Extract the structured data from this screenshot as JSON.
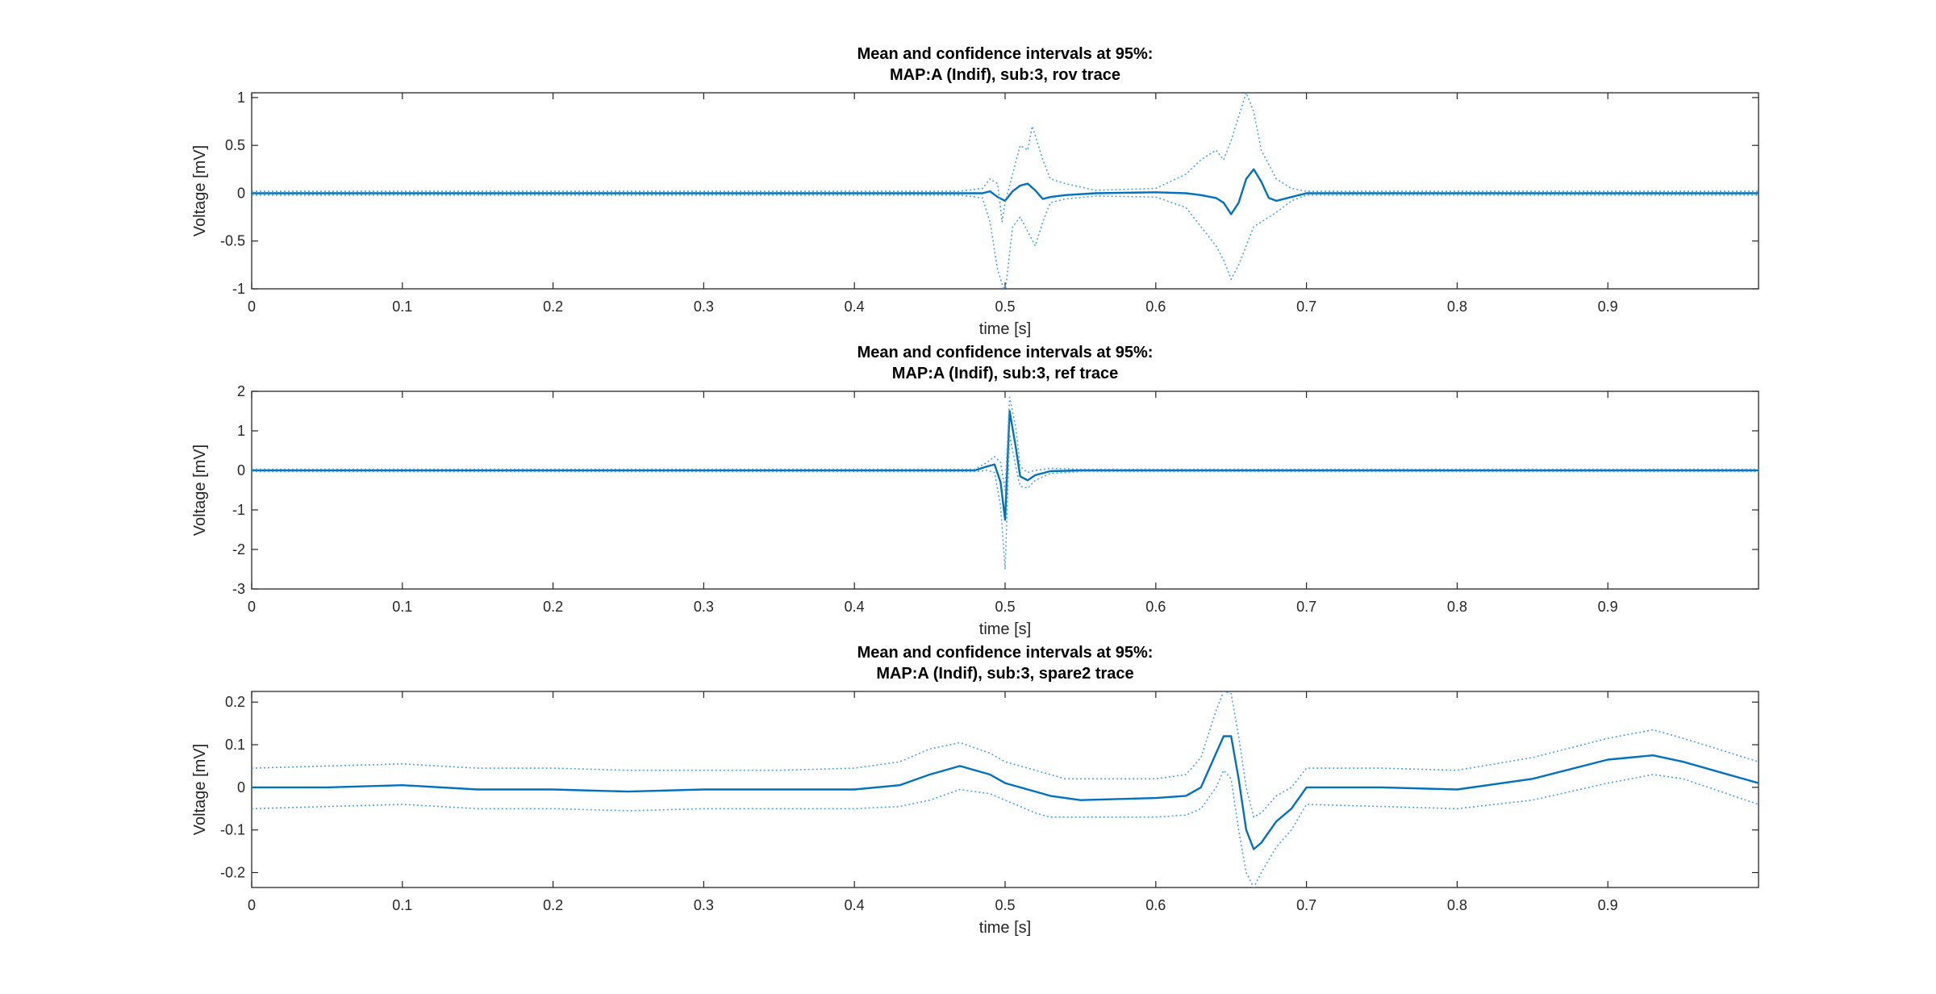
{
  "colors": {
    "mean": "#0072BD",
    "ci": "#4DA3E0",
    "axis": "#262626"
  },
  "chart_data": [
    {
      "type": "line",
      "title": [
        "Mean and confidence intervals at 95%:",
        "MAP:A (Indif), sub:3, rov trace"
      ],
      "xlabel": "time [s]",
      "ylabel": "Voltage [mV]",
      "xlim": [
        0,
        1
      ],
      "ylim": [
        -1,
        1.05
      ],
      "xticks": [
        0,
        0.1,
        0.2,
        0.3,
        0.4,
        0.5,
        0.6,
        0.7,
        0.8,
        0.9
      ],
      "yticks": [
        -1,
        -0.5,
        0,
        0.5,
        1
      ],
      "xtick_labels": [
        "0",
        "0.1",
        "0.2",
        "0.3",
        "0.4",
        "0.5",
        "0.6",
        "0.7",
        "0.8",
        "0.9"
      ],
      "ytick_labels": [
        "-1",
        "-0.5",
        "0",
        "0.5",
        "1"
      ],
      "series": [
        {
          "style": "mean",
          "x": [
            0,
            0.47,
            0.485,
            0.49,
            0.495,
            0.5,
            0.505,
            0.51,
            0.515,
            0.52,
            0.525,
            0.53,
            0.54,
            0.56,
            0.6,
            0.62,
            0.63,
            0.64,
            0.645,
            0.65,
            0.655,
            0.66,
            0.665,
            0.67,
            0.675,
            0.68,
            0.69,
            0.7,
            1.0
          ],
          "y": [
            0,
            0,
            0,
            0.02,
            -0.04,
            -0.08,
            0.02,
            0.08,
            0.1,
            0.03,
            -0.06,
            -0.04,
            -0.02,
            0,
            0.01,
            0.0,
            -0.02,
            -0.05,
            -0.1,
            -0.22,
            -0.1,
            0.15,
            0.25,
            0.12,
            -0.05,
            -0.08,
            -0.04,
            0,
            0
          ]
        },
        {
          "style": "ci",
          "x": [
            0,
            0.47,
            0.485,
            0.49,
            0.495,
            0.498,
            0.5,
            0.505,
            0.51,
            0.515,
            0.518,
            0.52,
            0.525,
            0.53,
            0.54,
            0.56,
            0.6,
            0.62,
            0.63,
            0.64,
            0.645,
            0.65,
            0.655,
            0.66,
            0.665,
            0.67,
            0.675,
            0.68,
            0.69,
            0.7,
            1.0
          ],
          "y": [
            0.02,
            0.02,
            0.05,
            0.15,
            0.1,
            -0.3,
            -0.1,
            0.2,
            0.5,
            0.45,
            0.7,
            0.6,
            0.35,
            0.15,
            0.1,
            0.03,
            0.05,
            0.2,
            0.35,
            0.45,
            0.35,
            0.55,
            0.8,
            1.05,
            0.85,
            0.45,
            0.3,
            0.15,
            0.05,
            0.02,
            0.02
          ]
        },
        {
          "style": "ci",
          "x": [
            0,
            0.47,
            0.485,
            0.49,
            0.495,
            0.5,
            0.505,
            0.51,
            0.515,
            0.52,
            0.525,
            0.53,
            0.54,
            0.56,
            0.6,
            0.62,
            0.63,
            0.64,
            0.645,
            0.65,
            0.655,
            0.66,
            0.665,
            0.67,
            0.675,
            0.68,
            0.69,
            0.7,
            1.0
          ],
          "y": [
            -0.02,
            -0.02,
            -0.05,
            -0.3,
            -0.8,
            -1.05,
            -0.35,
            -0.25,
            -0.4,
            -0.55,
            -0.3,
            -0.1,
            -0.06,
            -0.03,
            -0.04,
            -0.15,
            -0.35,
            -0.55,
            -0.7,
            -0.9,
            -0.75,
            -0.55,
            -0.35,
            -0.3,
            -0.25,
            -0.2,
            -0.08,
            -0.02,
            -0.02
          ]
        }
      ]
    },
    {
      "type": "line",
      "title": [
        "Mean and confidence intervals at 95%:",
        "MAP:A (Indif), sub:3, ref trace"
      ],
      "xlabel": "time [s]",
      "ylabel": "Voltage [mV]",
      "xlim": [
        0,
        1
      ],
      "ylim": [
        -3,
        2
      ],
      "xticks": [
        0,
        0.1,
        0.2,
        0.3,
        0.4,
        0.5,
        0.6,
        0.7,
        0.8,
        0.9
      ],
      "yticks": [
        -3,
        -2,
        -1,
        0,
        1,
        2
      ],
      "xtick_labels": [
        "0",
        "0.1",
        "0.2",
        "0.3",
        "0.4",
        "0.5",
        "0.6",
        "0.7",
        "0.8",
        "0.9"
      ],
      "ytick_labels": [
        "-3",
        "-2",
        "-1",
        "0",
        "1",
        "2"
      ],
      "series": [
        {
          "style": "mean",
          "x": [
            0,
            0.48,
            0.488,
            0.493,
            0.497,
            0.5,
            0.503,
            0.507,
            0.51,
            0.515,
            0.52,
            0.53,
            0.55,
            1.0
          ],
          "y": [
            0,
            0,
            0.1,
            0.15,
            -0.3,
            -1.25,
            1.5,
            0.6,
            -0.15,
            -0.25,
            -0.12,
            -0.02,
            0,
            0
          ]
        },
        {
          "style": "ci",
          "x": [
            0,
            0.48,
            0.488,
            0.493,
            0.497,
            0.5,
            0.503,
            0.507,
            0.51,
            0.515,
            0.52,
            0.53,
            0.55,
            1.0
          ],
          "y": [
            0.03,
            0.03,
            0.2,
            0.35,
            0.2,
            -0.5,
            1.85,
            1.1,
            0.1,
            -0.05,
            0.0,
            0.05,
            0.03,
            0.03
          ]
        },
        {
          "style": "ci",
          "x": [
            0,
            0.48,
            0.488,
            0.493,
            0.497,
            0.5,
            0.503,
            0.507,
            0.51,
            0.515,
            0.52,
            0.53,
            0.55,
            1.0
          ],
          "y": [
            -0.03,
            -0.03,
            0.0,
            -0.05,
            -0.9,
            -2.5,
            0.9,
            0.1,
            -0.4,
            -0.45,
            -0.25,
            -0.08,
            -0.03,
            -0.03
          ]
        }
      ]
    },
    {
      "type": "line",
      "title": [
        "Mean and confidence intervals at 95%:",
        "MAP:A (Indif), sub:3, spare2 trace"
      ],
      "xlabel": "time [s]",
      "ylabel": "Voltage [mV]",
      "xlim": [
        0,
        1
      ],
      "ylim": [
        -0.235,
        0.225
      ],
      "xticks": [
        0,
        0.1,
        0.2,
        0.3,
        0.4,
        0.5,
        0.6,
        0.7,
        0.8,
        0.9
      ],
      "yticks": [
        -0.2,
        -0.1,
        0,
        0.1,
        0.2
      ],
      "xtick_labels": [
        "0",
        "0.1",
        "0.2",
        "0.3",
        "0.4",
        "0.5",
        "0.6",
        "0.7",
        "0.8",
        "0.9"
      ],
      "ytick_labels": [
        "-0.2",
        "-0.1",
        "0",
        "0.1",
        "0.2"
      ],
      "series": [
        {
          "style": "mean",
          "x": [
            0,
            0.05,
            0.1,
            0.15,
            0.2,
            0.25,
            0.3,
            0.35,
            0.4,
            0.43,
            0.45,
            0.47,
            0.49,
            0.5,
            0.51,
            0.52,
            0.53,
            0.54,
            0.55,
            0.6,
            0.62,
            0.63,
            0.64,
            0.645,
            0.65,
            0.655,
            0.66,
            0.665,
            0.67,
            0.68,
            0.69,
            0.7,
            0.75,
            0.8,
            0.85,
            0.9,
            0.93,
            0.95,
            1.0
          ],
          "y": [
            0,
            0.0,
            0.005,
            -0.005,
            -0.005,
            -0.01,
            -0.005,
            -0.005,
            -0.005,
            0.005,
            0.03,
            0.05,
            0.03,
            0.01,
            0.0,
            -0.01,
            -0.02,
            -0.025,
            -0.03,
            -0.025,
            -0.02,
            0.0,
            0.08,
            0.12,
            0.12,
            0.02,
            -0.1,
            -0.145,
            -0.13,
            -0.08,
            -0.05,
            0.0,
            0.0,
            -0.005,
            0.02,
            0.065,
            0.075,
            0.06,
            0.01
          ]
        },
        {
          "style": "ci",
          "x": [
            0,
            0.05,
            0.1,
            0.15,
            0.2,
            0.25,
            0.3,
            0.35,
            0.4,
            0.43,
            0.45,
            0.47,
            0.49,
            0.5,
            0.51,
            0.52,
            0.53,
            0.54,
            0.55,
            0.6,
            0.62,
            0.63,
            0.64,
            0.645,
            0.65,
            0.655,
            0.66,
            0.665,
            0.67,
            0.68,
            0.69,
            0.7,
            0.75,
            0.8,
            0.85,
            0.9,
            0.93,
            0.95,
            1.0
          ],
          "y": [
            0.045,
            0.05,
            0.055,
            0.045,
            0.045,
            0.04,
            0.04,
            0.04,
            0.045,
            0.06,
            0.09,
            0.105,
            0.08,
            0.06,
            0.05,
            0.04,
            0.03,
            0.02,
            0.02,
            0.02,
            0.03,
            0.07,
            0.18,
            0.225,
            0.22,
            0.12,
            0.0,
            -0.07,
            -0.06,
            -0.02,
            0.0,
            0.045,
            0.045,
            0.04,
            0.07,
            0.115,
            0.135,
            0.115,
            0.06
          ]
        },
        {
          "style": "ci",
          "x": [
            0,
            0.05,
            0.1,
            0.15,
            0.2,
            0.25,
            0.3,
            0.35,
            0.4,
            0.43,
            0.45,
            0.47,
            0.49,
            0.5,
            0.51,
            0.52,
            0.53,
            0.54,
            0.55,
            0.6,
            0.62,
            0.63,
            0.64,
            0.645,
            0.65,
            0.655,
            0.66,
            0.665,
            0.67,
            0.68,
            0.69,
            0.7,
            0.75,
            0.8,
            0.85,
            0.9,
            0.93,
            0.95,
            1.0
          ],
          "y": [
            -0.05,
            -0.045,
            -0.04,
            -0.05,
            -0.05,
            -0.055,
            -0.05,
            -0.05,
            -0.05,
            -0.045,
            -0.03,
            -0.005,
            -0.015,
            -0.03,
            -0.045,
            -0.06,
            -0.07,
            -0.07,
            -0.07,
            -0.07,
            -0.065,
            -0.05,
            0.0,
            0.04,
            0.02,
            -0.1,
            -0.2,
            -0.235,
            -0.2,
            -0.14,
            -0.1,
            -0.04,
            -0.045,
            -0.05,
            -0.03,
            0.01,
            0.03,
            0.02,
            -0.04
          ]
        }
      ]
    }
  ]
}
